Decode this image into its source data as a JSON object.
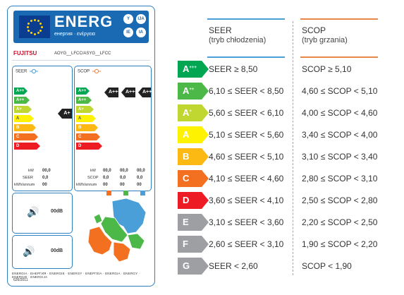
{
  "label": {
    "energ_word": "ENERG",
    "energ_sub": "енергия · ενέργεια",
    "lang_badges": [
      "Y",
      "IJA",
      "IE",
      "IA"
    ],
    "brand": "FUJITSU",
    "model": "AOYG__LFCC/ASYG__LFCC",
    "seer_panel": {
      "title": "SEER",
      "classes": [
        "A+++",
        "A++",
        "A+",
        "A",
        "B",
        "C",
        "D"
      ],
      "rated": "A+",
      "rows": [
        {
          "label": "kW",
          "value": "00,0"
        },
        {
          "label": "SEER",
          "value": "0,0"
        },
        {
          "label": "kWh/annum",
          "value": "00"
        }
      ]
    },
    "scop_panel": {
      "title": "SCOP",
      "classes": [
        "A+++",
        "A++",
        "A+",
        "A",
        "B",
        "C",
        "D"
      ],
      "rated": [
        "A+++",
        "A+++",
        "A+++"
      ],
      "rows": [
        {
          "label": "kW",
          "values": [
            "00,0",
            "00,0",
            "00,0"
          ]
        },
        {
          "label": "SCOP",
          "values": [
            "0,0",
            "0,0",
            "0,0"
          ]
        },
        {
          "label": "kWh/annum",
          "values": [
            "00",
            "00",
            "00"
          ]
        }
      ]
    },
    "sound_indoor": "00dB",
    "sound_outdoor": "00dB",
    "footer": "ENERGIA · ЕНЕРГИЯ · ENERGIE · ENERGY · ΕΝΕΡΓΕΙΑ · ENERGIA · ENERGY · ENERGIE · ENERGIJA",
    "regulation": "626/2011"
  },
  "table": {
    "seer_header": "SEER",
    "seer_sub": "(tryb chłodzenia)",
    "scop_header": "SCOP",
    "scop_sub": "(tryb grzania)",
    "seer_rule_color": "#4a9fd8",
    "scop_rule_color": "#e8874a",
    "rows": [
      {
        "cls": "A",
        "sup": "+++",
        "color": "#00a651",
        "seer": "SEER ≥ 8,50",
        "scop": "SCOP ≥ 5,10"
      },
      {
        "cls": "A",
        "sup": "++",
        "color": "#4cb848",
        "seer": "6,10 ≤ SEER < 8,50",
        "scop": "4,60 ≤ SCOP < 5,10"
      },
      {
        "cls": "A",
        "sup": "+",
        "color": "#bfd730",
        "seer": "5,60 ≤ SEER < 6,10",
        "scop": "4,00 ≤ SCOP < 4,60"
      },
      {
        "cls": "A",
        "sup": "",
        "color": "#fff200",
        "seer": "5,10 ≤ SEER < 5,60",
        "scop": "3,40 ≤ SCOP < 4,00"
      },
      {
        "cls": "B",
        "sup": "",
        "color": "#fdb913",
        "seer": "4,60 ≤ SEER < 5,10",
        "scop": "3,10 ≤ SCOP < 3,40"
      },
      {
        "cls": "C",
        "sup": "",
        "color": "#f37021",
        "seer": "4,10 ≤ SEER < 4,60",
        "scop": "2,80 ≤ SCOP < 3,10"
      },
      {
        "cls": "D",
        "sup": "",
        "color": "#ed1c24",
        "seer": "3,60 ≤ SEER < 4,10",
        "scop": "2,50 ≤ SCOP < 2,80"
      },
      {
        "cls": "E",
        "sup": "",
        "color": "#9d9fa2",
        "seer": "3,10 ≤ SEER < 3,60",
        "scop": "2,20 ≤ SCOP < 2,50"
      },
      {
        "cls": "F",
        "sup": "",
        "color": "#9d9fa2",
        "seer": "2,60 ≤ SEER < 3,10",
        "scop": "1,90 ≤ SCOP < 2,20"
      },
      {
        "cls": "G",
        "sup": "",
        "color": "#9d9fa2",
        "seer": "SEER < 2,60",
        "scop": "SCOP < 1,90"
      }
    ]
  },
  "colors": {
    "A+++": "#00a651",
    "A++": "#4cb848",
    "A+": "#bfd730",
    "A": "#fff200",
    "B": "#fdb913",
    "C": "#f37021",
    "D": "#ed1c24",
    "label_blue": "#1a6ab3"
  }
}
